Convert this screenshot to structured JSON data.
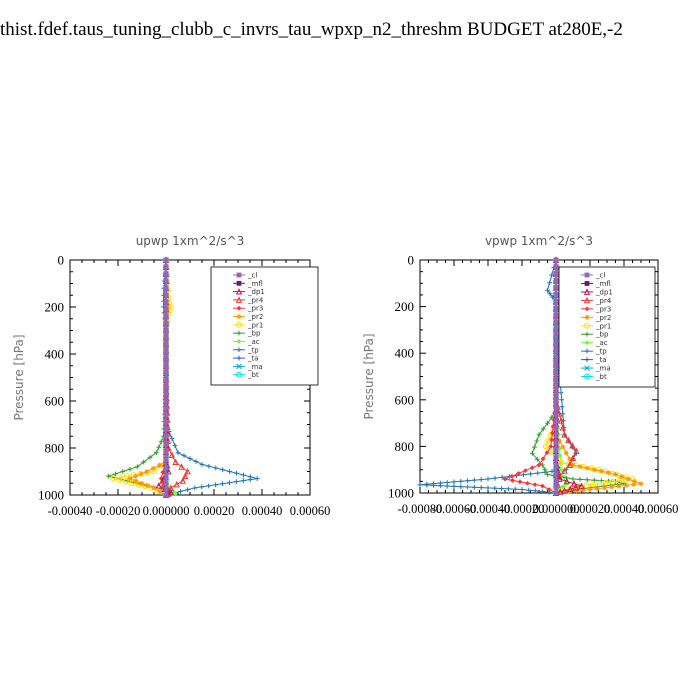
{
  "page": {
    "title": "thist.fdef.taus_tuning_clubb_c_invrs_tau_wpxp_n2_threshm  BUDGET at280E,-2"
  },
  "chart_data": [
    {
      "type": "line",
      "title": "upwp   1xm^2/s^3",
      "ylabel": "Pressure [hPa]",
      "xlabel": "",
      "xlim": [
        -0.0004,
        0.0006
      ],
      "ylim": [
        1000,
        0
      ],
      "y_reversed": true,
      "xticks": [
        "-0.00040",
        "-0.00020",
        "0.000000",
        "0.00020",
        "0.00040",
        "0.00060"
      ],
      "yticks": [
        "0",
        "200",
        "400",
        "600",
        "800",
        "1000"
      ],
      "legend_position": "top-right",
      "series": [
        {
          "name": "_cl",
          "color": "#9467bd",
          "marker": "square",
          "x": [
            0,
            0,
            0,
            0,
            0,
            0,
            0,
            0,
            0
          ],
          "y": [
            0,
            150,
            300,
            450,
            600,
            750,
            850,
            950,
            1000
          ]
        },
        {
          "name": "_mfl",
          "color": "#6b1a6b",
          "marker": "square",
          "x": [
            0,
            0,
            0,
            0,
            0,
            0,
            0,
            0,
            0
          ],
          "y": [
            0,
            150,
            300,
            450,
            600,
            750,
            850,
            950,
            1000
          ]
        },
        {
          "name": "_dp1",
          "color": "#c2185b",
          "marker": "triangle",
          "x": [
            0,
            0,
            0,
            0,
            1e-05,
            -3e-05,
            2e-05,
            0
          ],
          "y": [
            0,
            300,
            600,
            850,
            900,
            960,
            990,
            1000
          ]
        },
        {
          "name": "_pr4",
          "color": "#e53935",
          "marker": "triangle",
          "x": [
            0,
            0,
            1e-05,
            4e-05,
            9e-05,
            7e-05,
            2e-05,
            0
          ],
          "y": [
            0,
            500,
            800,
            860,
            900,
            940,
            970,
            1000
          ]
        },
        {
          "name": "_pr3",
          "color": "#ff3333",
          "marker": "diamond",
          "x": [
            0,
            0,
            0,
            -2e-05,
            -1e-05,
            1e-05,
            0
          ],
          "y": [
            0,
            500,
            850,
            930,
            960,
            980,
            1000
          ]
        },
        {
          "name": "_pr2",
          "color": "#ff9900",
          "marker": "star",
          "x": [
            0,
            0,
            5e-06,
            0,
            0,
            0,
            -8e-05,
            -0.00015,
            -5e-05,
            0
          ],
          "y": [
            0,
            150,
            200,
            250,
            500,
            860,
            900,
            930,
            970,
            1000
          ]
        },
        {
          "name": "_pr1",
          "color": "#ffdd00",
          "marker": "circle",
          "x": [
            0,
            1e-05,
            2e-05,
            1e-05,
            0,
            0,
            -5e-05,
            -0.00022,
            -6e-05,
            0
          ],
          "y": [
            0,
            160,
            200,
            230,
            300,
            850,
            900,
            930,
            970,
            1000
          ]
        },
        {
          "name": "_bp",
          "color": "#2ca02c",
          "marker": "plus",
          "x": [
            0,
            0,
            -1e-05,
            -4e-05,
            -0.00012,
            -0.00024,
            -8e-05,
            1e-05,
            2e-05,
            0
          ],
          "y": [
            0,
            500,
            750,
            820,
            880,
            920,
            960,
            980,
            990,
            1000
          ]
        },
        {
          "name": "_ac",
          "color": "#66ff33",
          "marker": "diamond",
          "x": [
            0,
            0,
            0,
            0,
            1e-05,
            3e-05,
            4e-05,
            0
          ],
          "y": [
            0,
            500,
            850,
            940,
            970,
            985,
            995,
            1000
          ]
        },
        {
          "name": "_tp",
          "color": "#1f77b4",
          "marker": "plus",
          "x": [
            0,
            -1e-05,
            -1e-05,
            -5e-06,
            0,
            0,
            5e-05,
            0.00015,
            0.00038,
            0.00012,
            0
          ],
          "y": [
            0,
            150,
            200,
            250,
            300,
            700,
            820,
            870,
            930,
            970,
            1000
          ]
        },
        {
          "name": "_ta",
          "color": "#3355dd",
          "marker": "plus",
          "x": [
            0,
            0,
            0,
            0
          ],
          "y": [
            0,
            500,
            900,
            1000
          ]
        },
        {
          "name": "_ma",
          "color": "#00aacc",
          "marker": "cross",
          "x": [
            0,
            0,
            0,
            0
          ],
          "y": [
            0,
            500,
            900,
            1000
          ]
        },
        {
          "name": "_bt",
          "color": "#00dddd",
          "marker": "circle",
          "x": [
            0,
            0,
            0,
            0
          ],
          "y": [
            0,
            500,
            900,
            1000
          ]
        }
      ]
    },
    {
      "type": "line",
      "title": "vpwp   1xm^2/s^3",
      "ylabel": "Pressure [hPa]",
      "xlabel": "",
      "xlim": [
        -0.0008,
        0.0006
      ],
      "ylim": [
        1000,
        0
      ],
      "y_reversed": true,
      "xticks": [
        "-0.00080",
        "-0.00060",
        "-0.00040",
        "-0.00020",
        "0.000000",
        "0.00020",
        "0.00040",
        "0.00060"
      ],
      "yticks": [
        "0",
        "200",
        "400",
        "600",
        "800",
        "1000"
      ],
      "legend_position": "top-right",
      "series": [
        {
          "name": "_cl",
          "color": "#9467bd",
          "marker": "square",
          "x": [
            0,
            0,
            0,
            0,
            0,
            0,
            0,
            0,
            0
          ],
          "y": [
            0,
            150,
            300,
            450,
            600,
            750,
            850,
            950,
            1000
          ]
        },
        {
          "name": "_mfl",
          "color": "#6b1a6b",
          "marker": "square",
          "x": [
            0,
            0,
            0,
            0,
            0,
            0,
            0,
            0,
            0
          ],
          "y": [
            0,
            150,
            300,
            450,
            600,
            750,
            850,
            950,
            1000
          ]
        },
        {
          "name": "_dp1",
          "color": "#c2185b",
          "marker": "triangle",
          "x": [
            0,
            0,
            0,
            2e-05,
            0.00015,
            5e-05,
            0
          ],
          "y": [
            0,
            500,
            850,
            940,
            970,
            990,
            1000
          ]
        },
        {
          "name": "_pr4",
          "color": "#e53935",
          "marker": "triangle",
          "x": [
            0,
            0,
            5e-05,
            0.00012,
            8e-05,
            2e-05,
            0
          ],
          "y": [
            0,
            600,
            750,
            820,
            880,
            930,
            1000
          ]
        },
        {
          "name": "_pr3",
          "color": "#ff3333",
          "marker": "diamond",
          "x": [
            0,
            0,
            -3e-05,
            -0.0001,
            -0.0003,
            -8e-05,
            0
          ],
          "y": [
            0,
            600,
            800,
            880,
            940,
            970,
            1000
          ]
        },
        {
          "name": "_pr2",
          "color": "#ff9900",
          "marker": "star",
          "x": [
            0,
            3e-05,
            5e-05,
            2e-05,
            0,
            0,
            0.0001,
            0.00035,
            0.0005,
            0.0002,
            0
          ],
          "y": [
            0,
            150,
            180,
            220,
            300,
            750,
            880,
            920,
            960,
            985,
            1000
          ]
        },
        {
          "name": "_pr1",
          "color": "#ffdd00",
          "marker": "circle",
          "x": [
            0,
            4e-05,
            7e-05,
            4e-05,
            0,
            0,
            -6e-05,
            3e-05,
            0.00025,
            0.00045,
            0.0001,
            0
          ],
          "y": [
            0,
            130,
            160,
            200,
            300,
            700,
            800,
            870,
            900,
            940,
            975,
            1000
          ]
        },
        {
          "name": "_bp",
          "color": "#2ca02c",
          "marker": "plus",
          "x": [
            0,
            0,
            -0.0001,
            -0.00014,
            -8e-05,
            -5e-05,
            0.0001,
            0.00035,
            0.0004,
            5e-05,
            0
          ],
          "y": [
            0,
            650,
            750,
            830,
            880,
            920,
            940,
            950,
            960,
            990,
            1000
          ]
        },
        {
          "name": "_ac",
          "color": "#66ff33",
          "marker": "diamond",
          "x": [
            0,
            0,
            3e-05,
            6e-05,
            2e-05,
            0
          ],
          "y": [
            0,
            600,
            900,
            960,
            985,
            1000
          ]
        },
        {
          "name": "_tp",
          "color": "#1f77b4",
          "marker": "plus",
          "x": [
            0,
            -5e-05,
            -2e-05,
            3e-05,
            2e-05,
            0,
            5e-05,
            0.00012,
            6e-05,
            -0.0004,
            -0.0008,
            -0.0002,
            0
          ],
          "y": [
            0,
            130,
            160,
            200,
            230,
            300,
            750,
            830,
            900,
            940,
            965,
            985,
            1000
          ]
        },
        {
          "name": "_ta",
          "color": "#3355dd",
          "marker": "plus",
          "x": [
            0,
            0,
            0,
            0
          ],
          "y": [
            0,
            500,
            900,
            1000
          ]
        },
        {
          "name": "_ma",
          "color": "#00aacc",
          "marker": "cross",
          "x": [
            0,
            0,
            0,
            0
          ],
          "y": [
            0,
            500,
            900,
            1000
          ]
        },
        {
          "name": "_bt",
          "color": "#00dddd",
          "marker": "circle",
          "x": [
            0,
            0,
            0,
            0
          ],
          "y": [
            0,
            500,
            900,
            1000
          ]
        }
      ]
    }
  ]
}
